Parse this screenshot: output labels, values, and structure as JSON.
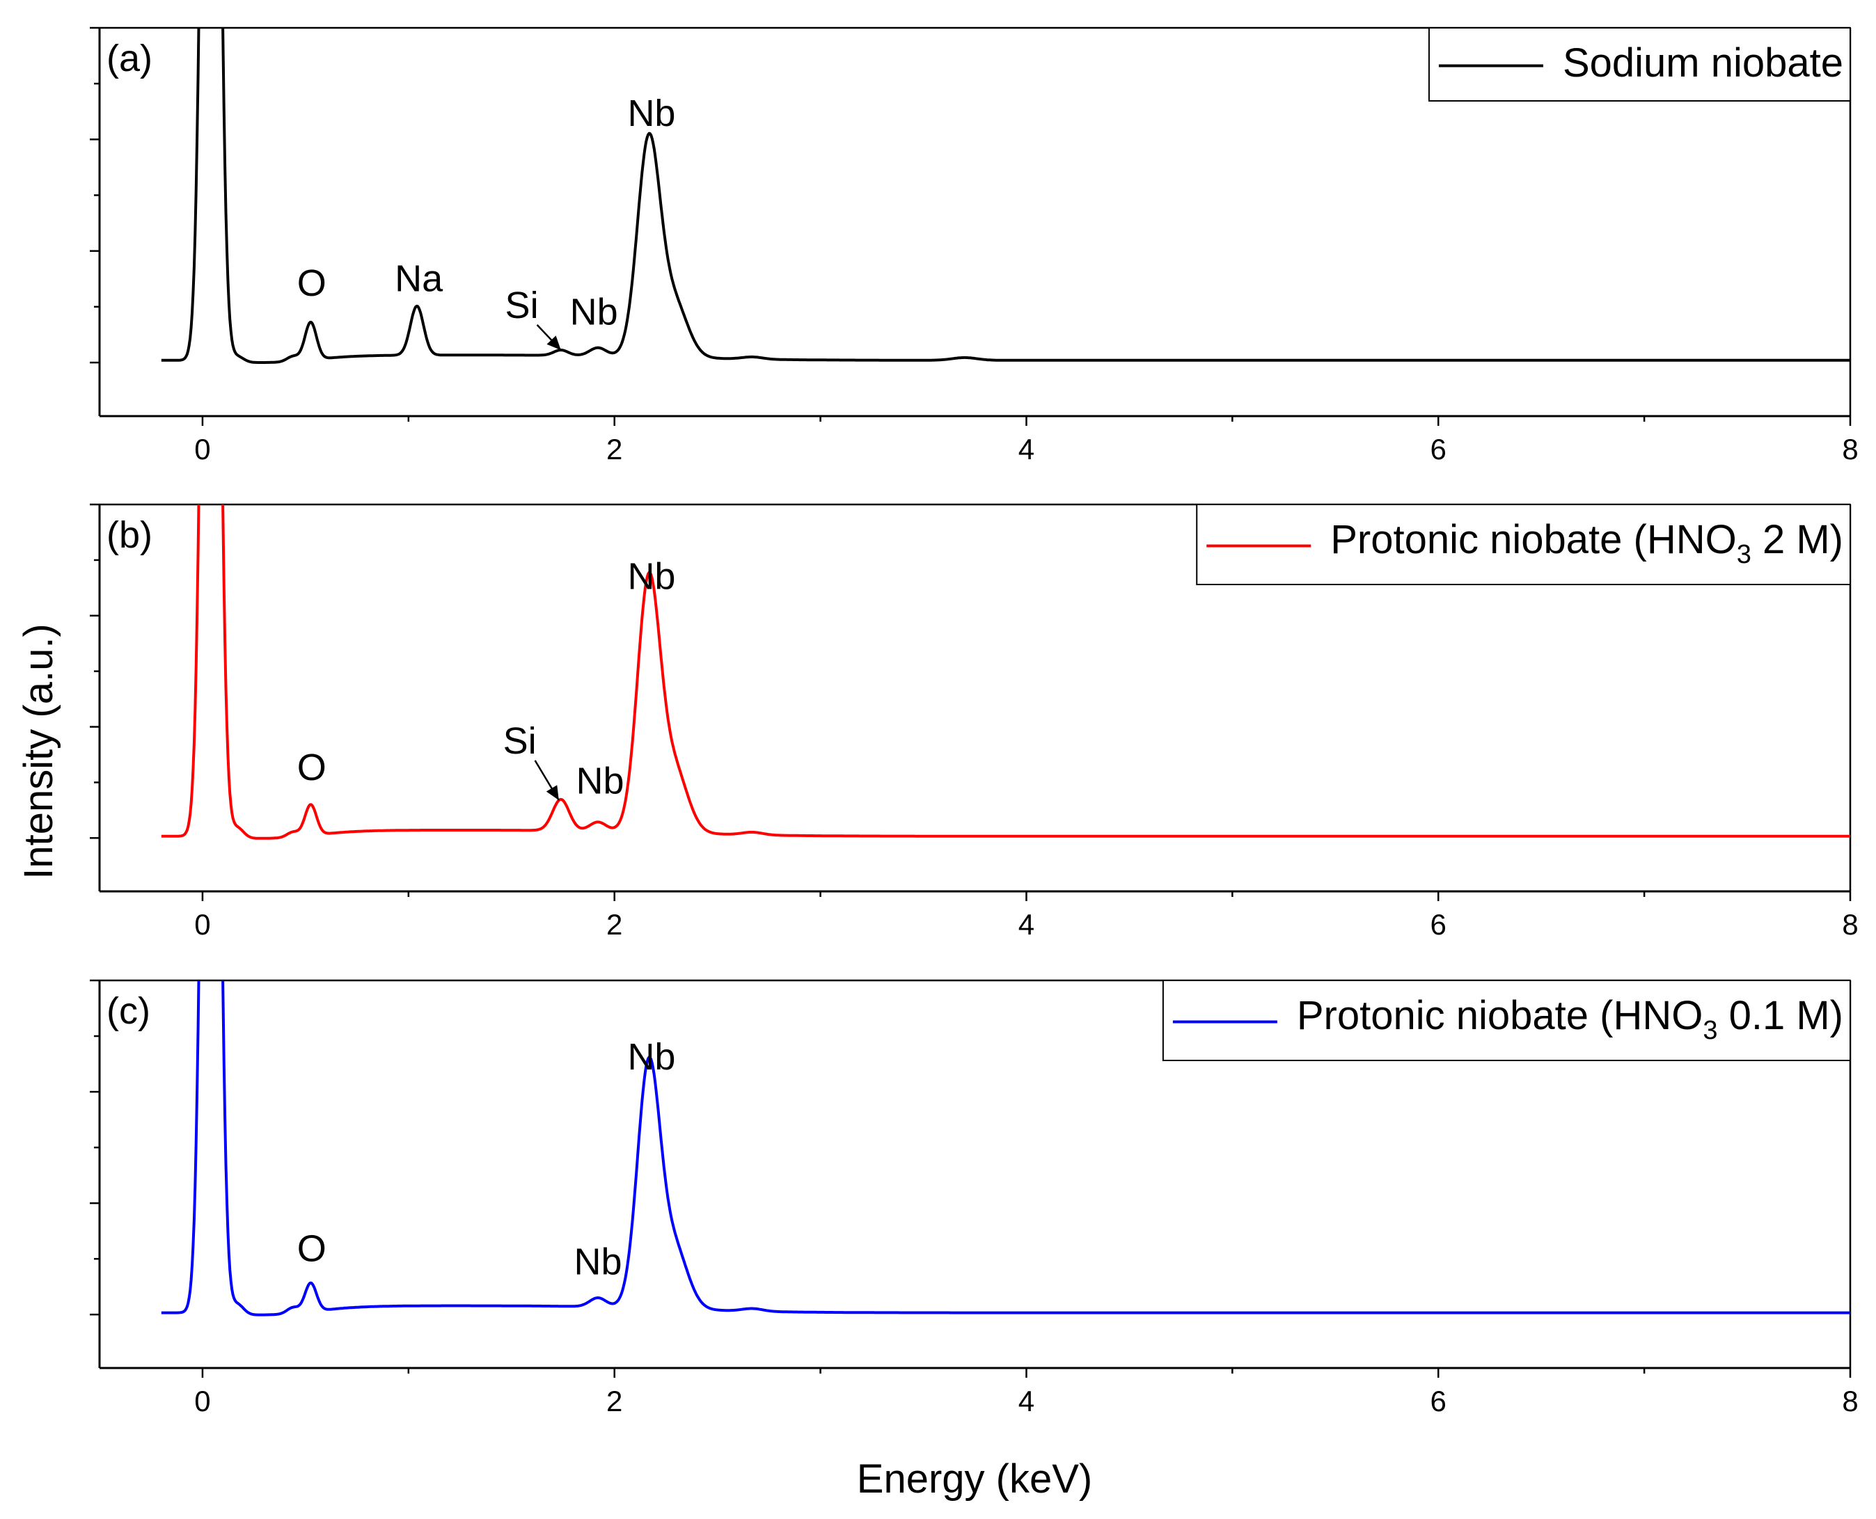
{
  "chart_data": {
    "type": "line",
    "xlabel": "Energy (keV)",
    "ylabel": "Intensity (a.u.)",
    "xlim": [
      -0.5,
      8
    ],
    "ylim": [
      -0.12,
      0.75
    ],
    "x_ticks": [
      0,
      2,
      4,
      6,
      8
    ],
    "x_tick_labels": [
      "0",
      "2",
      "4",
      "6",
      "8"
    ],
    "x_minor_ticks": [
      1,
      3,
      5,
      7
    ],
    "y_ticks": [
      0,
      0.125,
      0.25,
      0.375,
      0.5,
      0.625,
      0.75
    ],
    "panels": [
      {
        "id": "a",
        "tag": "(a)",
        "series_name": "Sodium niobate",
        "legend_main": "Sodium niobate",
        "legend_sub": "",
        "legend_tail": "",
        "color": "#000000",
        "baseline": 0.005,
        "offset": 0.0,
        "peaks": [
          {
            "center": 0.04,
            "height": 3.0,
            "sigma": 0.035
          },
          {
            "center": 0.17,
            "height": 0.012,
            "sigma": 0.03
          },
          {
            "center": 0.44,
            "height": 0.012,
            "sigma": 0.03
          },
          {
            "center": 0.525,
            "height": 0.085,
            "sigma": 0.028
          },
          {
            "center": 1.041,
            "height": 0.11,
            "sigma": 0.032
          },
          {
            "center": 1.74,
            "height": 0.012,
            "sigma": 0.035
          },
          {
            "center": 1.92,
            "height": 0.018,
            "sigma": 0.04
          },
          {
            "center": 2.166,
            "height": 0.48,
            "sigma": 0.055
          },
          {
            "center": 2.29,
            "height": 0.12,
            "sigma": 0.065
          },
          {
            "center": 2.67,
            "height": 0.005,
            "sigma": 0.05
          },
          {
            "center": 3.7,
            "height": 0.006,
            "sigma": 0.06
          }
        ],
        "shelf": {
          "start": 0.6,
          "end": 1.95,
          "height": 0.012
        },
        "labels": [
          {
            "text": "O",
            "x": 0.53,
            "y": 0.15,
            "arrow": false
          },
          {
            "text": "Na",
            "x": 1.05,
            "y": 0.16,
            "arrow": false
          },
          {
            "text": "Si",
            "x": 1.55,
            "y": 0.1,
            "arrow": true,
            "target_x": 1.74,
            "target_y": 0.028
          },
          {
            "text": "Nb",
            "x": 1.9,
            "y": 0.085,
            "arrow": false
          },
          {
            "text": "Nb",
            "x": 2.18,
            "y": 0.53,
            "arrow": false
          }
        ]
      },
      {
        "id": "b",
        "tag": "(b)",
        "series_name": "Protonic niobate (HNO3 2 M)",
        "legend_main": "Protonic niobate (HNO",
        "legend_sub": "3",
        "legend_tail": " 2 M)",
        "color": "#ff0000",
        "baseline": 0.004,
        "offset": 0.0,
        "peaks": [
          {
            "center": 0.04,
            "height": 3.0,
            "sigma": 0.035
          },
          {
            "center": 0.17,
            "height": 0.022,
            "sigma": 0.03
          },
          {
            "center": 0.44,
            "height": 0.012,
            "sigma": 0.03
          },
          {
            "center": 0.525,
            "height": 0.07,
            "sigma": 0.028
          },
          {
            "center": 1.74,
            "height": 0.07,
            "sigma": 0.04
          },
          {
            "center": 1.92,
            "height": 0.02,
            "sigma": 0.04
          },
          {
            "center": 2.166,
            "height": 0.56,
            "sigma": 0.055
          },
          {
            "center": 2.29,
            "height": 0.14,
            "sigma": 0.065
          },
          {
            "center": 2.67,
            "height": 0.006,
            "sigma": 0.05
          }
        ],
        "shelf": {
          "start": 0.6,
          "end": 1.95,
          "height": 0.014
        },
        "labels": [
          {
            "text": "O",
            "x": 0.53,
            "y": 0.13,
            "arrow": false
          },
          {
            "text": "Si",
            "x": 1.54,
            "y": 0.19,
            "arrow": true,
            "target_x": 1.73,
            "target_y": 0.085
          },
          {
            "text": "Nb",
            "x": 1.93,
            "y": 0.1,
            "arrow": false
          },
          {
            "text": "Nb",
            "x": 2.18,
            "y": 0.56,
            "arrow": false
          }
        ]
      },
      {
        "id": "c",
        "tag": "(c)",
        "series_name": "Protonic niobate (HNO3 0.1 M)",
        "legend_main": "Protonic niobate (HNO",
        "legend_sub": "3",
        "legend_tail": " 0.1 M)",
        "color": "#0000ff",
        "baseline": 0.004,
        "offset": 0.0,
        "peaks": [
          {
            "center": 0.04,
            "height": 3.0,
            "sigma": 0.035
          },
          {
            "center": 0.17,
            "height": 0.022,
            "sigma": 0.03
          },
          {
            "center": 0.44,
            "height": 0.014,
            "sigma": 0.03
          },
          {
            "center": 0.525,
            "height": 0.065,
            "sigma": 0.028
          },
          {
            "center": 1.92,
            "height": 0.02,
            "sigma": 0.04
          },
          {
            "center": 2.166,
            "height": 0.54,
            "sigma": 0.055
          },
          {
            "center": 2.29,
            "height": 0.135,
            "sigma": 0.065
          },
          {
            "center": 2.67,
            "height": 0.006,
            "sigma": 0.05
          }
        ],
        "shelf": {
          "start": 0.6,
          "end": 1.95,
          "height": 0.016
        },
        "labels": [
          {
            "text": "O",
            "x": 0.53,
            "y": 0.12,
            "arrow": false
          },
          {
            "text": "Nb",
            "x": 1.92,
            "y": 0.09,
            "arrow": false
          },
          {
            "text": "Nb",
            "x": 2.18,
            "y": 0.55,
            "arrow": false
          }
        ]
      }
    ]
  }
}
